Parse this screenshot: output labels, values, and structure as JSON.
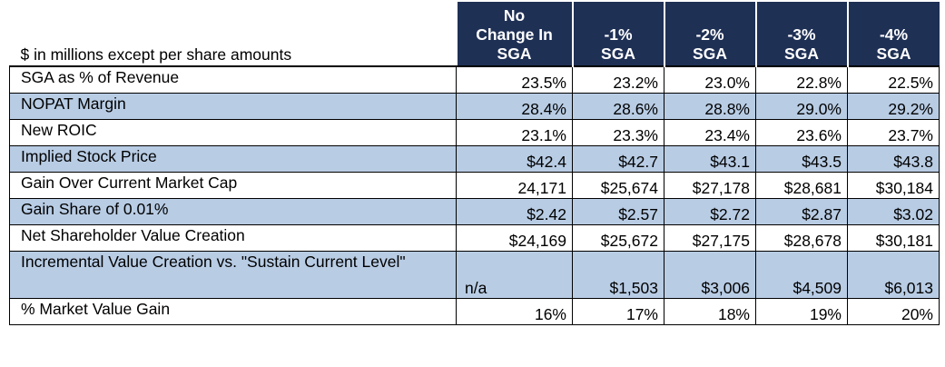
{
  "caption": "$ in millions except per share amounts",
  "columns": [
    [
      "No",
      "Change In",
      "SGA"
    ],
    [
      "-1%",
      "SGA"
    ],
    [
      "-2%",
      "SGA"
    ],
    [
      "-3%",
      "SGA"
    ],
    [
      "-4%",
      "SGA"
    ]
  ],
  "rows": [
    {
      "label": "SGA as % of Revenue",
      "values": [
        "23.5%",
        "23.2%",
        "23.0%",
        "22.8%",
        "22.5%"
      ],
      "shaded": false
    },
    {
      "label": "NOPAT Margin",
      "values": [
        "28.4%",
        "28.6%",
        "28.8%",
        "29.0%",
        "29.2%"
      ],
      "shaded": true
    },
    {
      "label": "New ROIC",
      "values": [
        "23.1%",
        "23.3%",
        "23.4%",
        "23.6%",
        "23.7%"
      ],
      "shaded": false
    },
    {
      "label": "Implied Stock Price",
      "values": [
        "$42.4",
        "$42.7",
        "$43.1",
        "$43.5",
        "$43.8"
      ],
      "shaded": true
    },
    {
      "label": "Gain Over Current Market Cap",
      "values": [
        "24,171",
        "$25,674",
        "$27,178",
        "$28,681",
        "$30,184"
      ],
      "shaded": false
    },
    {
      "label": "Gain Share of  0.01%",
      "values": [
        "$2.42",
        "$2.57",
        "$2.72",
        "$2.87",
        "$3.02"
      ],
      "shaded": true
    },
    {
      "label": "Net Shareholder Value Creation",
      "values": [
        "$24,169",
        "$25,672",
        "$27,175",
        "$28,678",
        "$30,181"
      ],
      "shaded": false
    },
    {
      "label": "Incremental Value Creation vs. \"Sustain Current Level\"",
      "values": [
        "n/a",
        "$1,503",
        "$3,006",
        "$4,509",
        "$6,013"
      ],
      "shaded": true
    },
    {
      "label": "% Market Value Gain",
      "values": [
        "16%",
        "17%",
        "18%",
        "19%",
        "20%"
      ],
      "shaded": false
    }
  ],
  "colors": {
    "header_bg": "#1f3055",
    "header_text": "#ffffff",
    "row_shade": "#b8cce4"
  }
}
